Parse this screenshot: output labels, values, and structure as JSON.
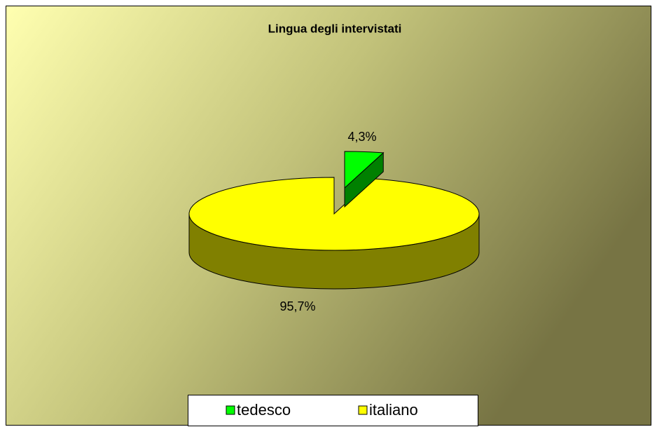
{
  "chart_data": {
    "type": "pie3d",
    "title": "Lingua degli intervistati",
    "categories": [
      "tedesco",
      "italiano"
    ],
    "values": [
      4.3,
      95.7
    ],
    "value_labels": [
      "4,3%",
      "95,7%"
    ],
    "colors": [
      "#00ff00",
      "#ffff00"
    ],
    "legend": "bottom"
  }
}
